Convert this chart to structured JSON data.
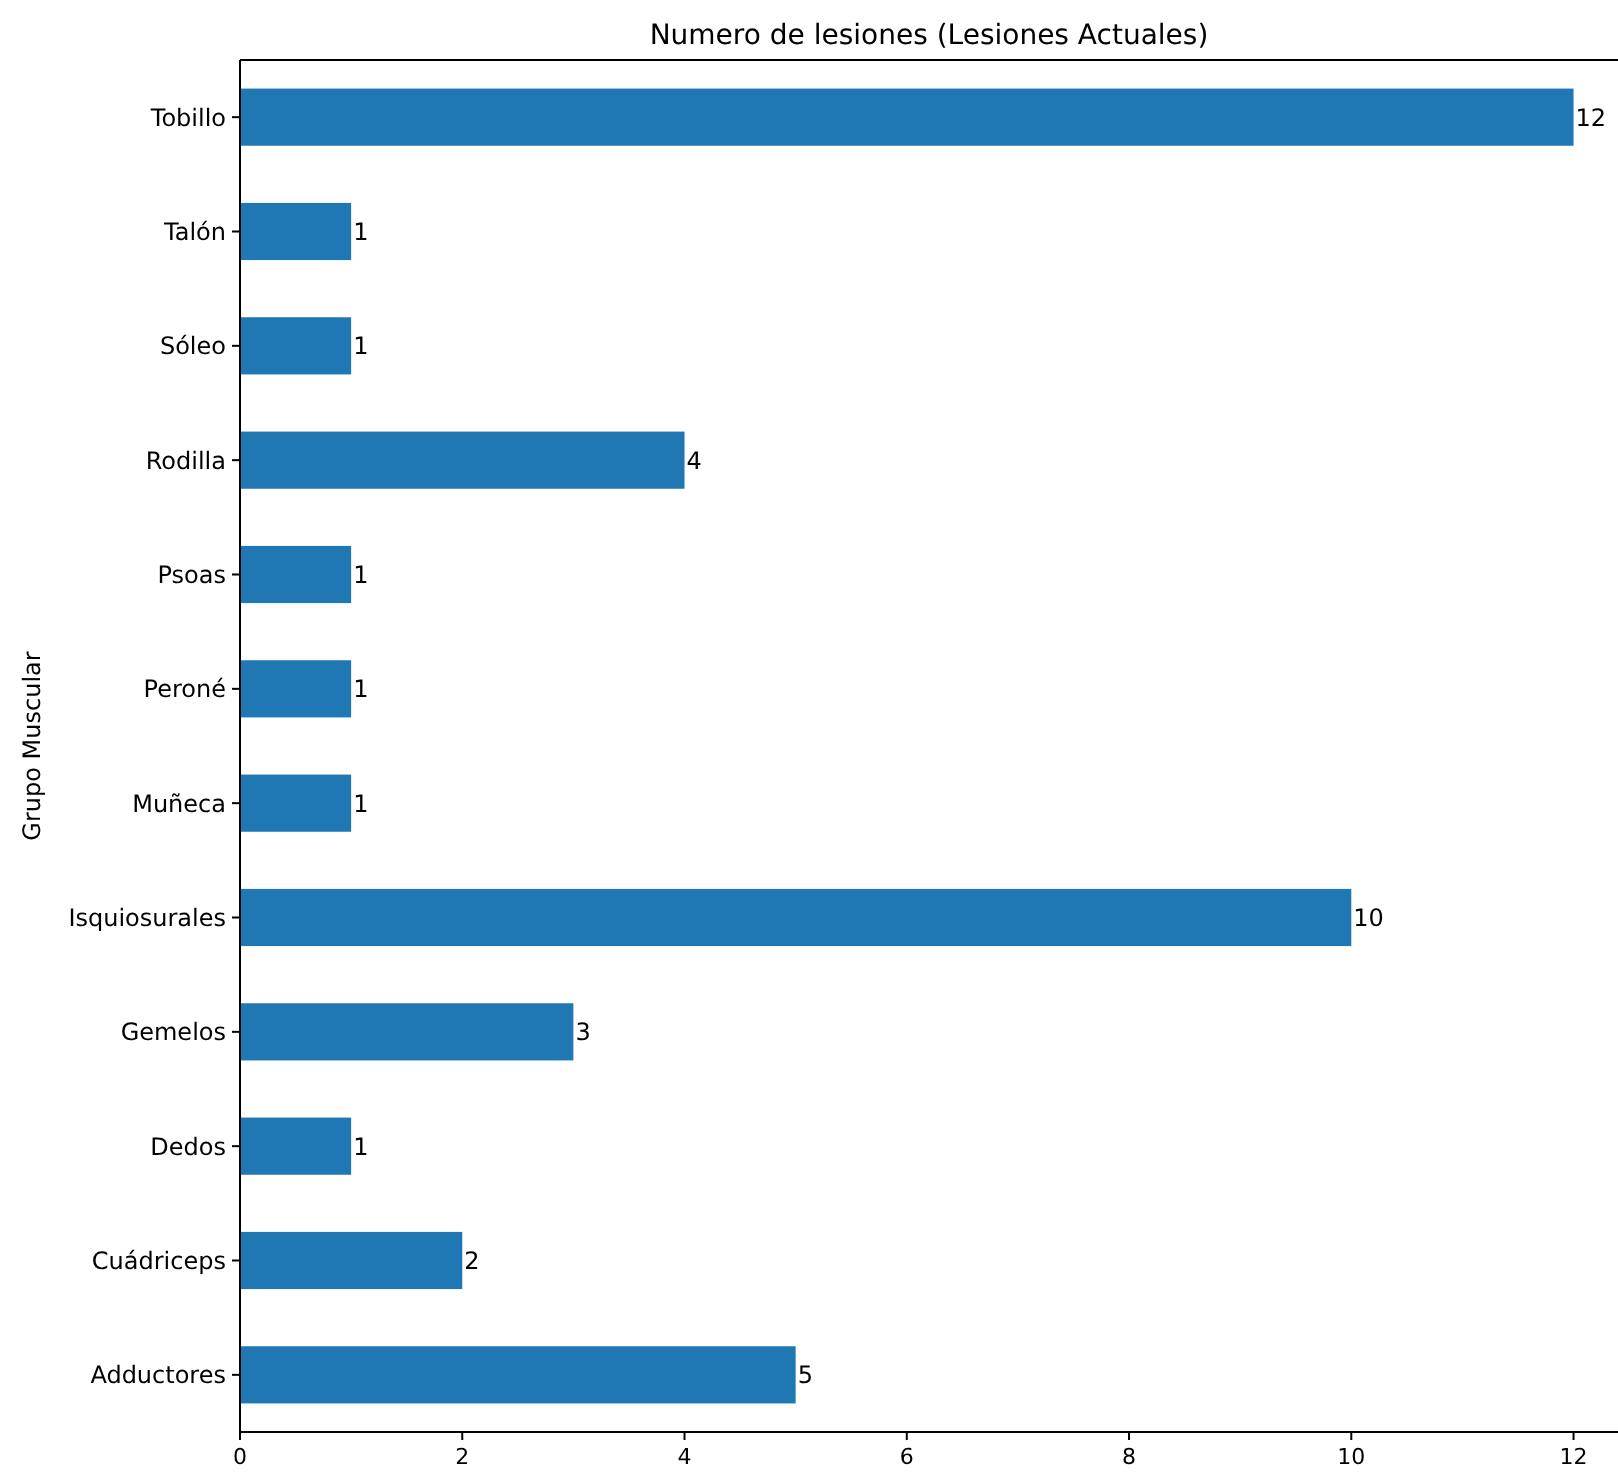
{
  "chart_data": {
    "type": "bar",
    "orientation": "horizontal",
    "title": "Numero de lesiones (Lesiones Actuales)",
    "ylabel": "Grupo Muscular",
    "categories": [
      "Tobillo",
      "Talón",
      "Sóleo",
      "Rodilla",
      "Psoas",
      "Peroné",
      "Muñeca",
      "Isquiosurales",
      "Gemelos",
      "Dedos",
      "Cuádriceps",
      "Adductores"
    ],
    "values": [
      12,
      1,
      1,
      4,
      1,
      1,
      1,
      10,
      3,
      1,
      2,
      5
    ],
    "color": "#1f77b4",
    "xlim": [
      0,
      12.4
    ],
    "xticks": [
      0,
      2,
      4,
      6,
      8,
      10,
      12
    ],
    "data_labels": true
  }
}
